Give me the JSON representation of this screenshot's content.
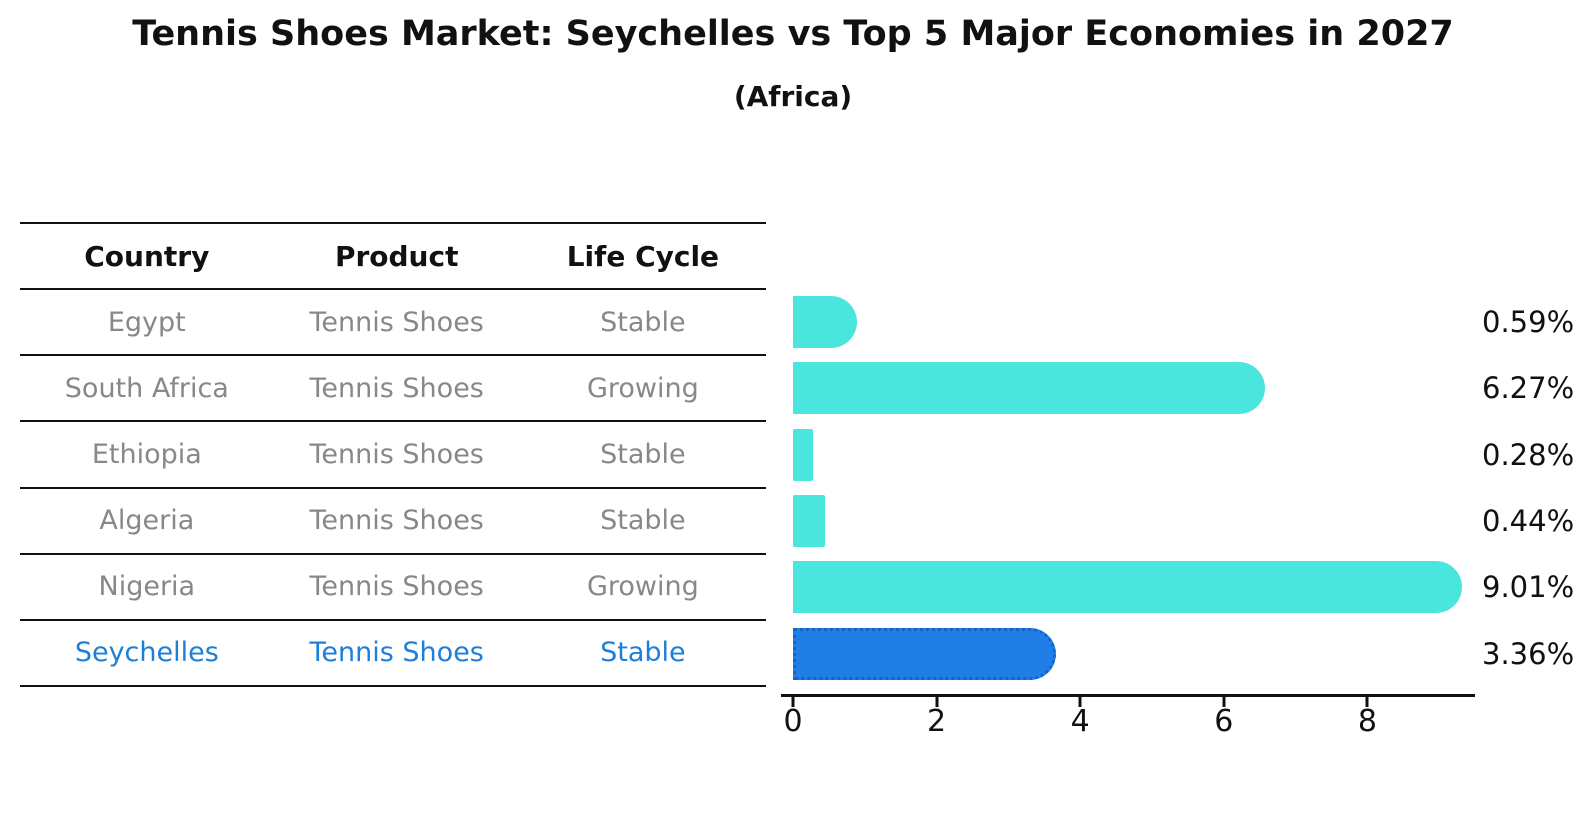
{
  "title": "Tennis Shoes Market: Seychelles vs Top 5 Major Economies in 2027",
  "subtitle": "(Africa)",
  "table": {
    "headers": [
      "Country",
      "Product",
      "Life Cycle"
    ],
    "rows": [
      {
        "country": "Egypt",
        "product": "Tennis Shoes",
        "life_cycle": "Stable",
        "highlight": false
      },
      {
        "country": "South Africa",
        "product": "Tennis Shoes",
        "life_cycle": "Growing",
        "highlight": false
      },
      {
        "country": "Ethiopia",
        "product": "Tennis Shoes",
        "life_cycle": "Stable",
        "highlight": false
      },
      {
        "country": "Algeria",
        "product": "Tennis Shoes",
        "life_cycle": "Stable",
        "highlight": false
      },
      {
        "country": "Nigeria",
        "product": "Tennis Shoes",
        "life_cycle": "Growing",
        "highlight": false
      },
      {
        "country": "Seychelles",
        "product": "Tennis Shoes",
        "life_cycle": "Stable",
        "highlight": true
      }
    ]
  },
  "chart_data": {
    "type": "bar",
    "orientation": "horizontal",
    "categories": [
      "Egypt",
      "South Africa",
      "Ethiopia",
      "Algeria",
      "Nigeria",
      "Seychelles"
    ],
    "values": [
      0.59,
      6.27,
      0.28,
      0.44,
      9.01,
      3.36
    ],
    "value_labels": [
      "0.59%",
      "6.27%",
      "0.28%",
      "0.44%",
      "9.01%",
      "3.36%"
    ],
    "x_ticks": [
      "0",
      "2",
      "4",
      "6",
      "8"
    ],
    "x_tick_values": [
      0,
      2,
      4,
      6,
      8
    ],
    "xlim": [
      0,
      9.45
    ],
    "grid": false,
    "legend": "none",
    "highlight_index": 5
  },
  "colors": {
    "bar_fill": "#4ae6de",
    "highlight_fill": "#1f7fe6",
    "highlight_border": "#1463c8",
    "text_dark": "#111111",
    "text_gray": "#888888",
    "text_highlight": "#1e7fd8"
  }
}
